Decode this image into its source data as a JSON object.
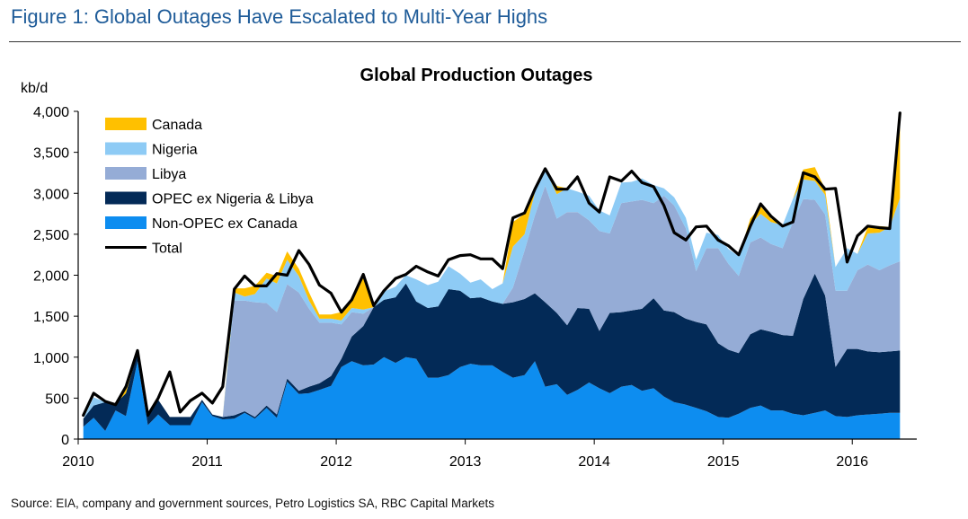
{
  "figure_title": "Figure 1: Global Outages Have Escalated to Multi-Year Highs",
  "source": "Source: EIA, company and government sources, Petro Logistics SA, RBC Capital Markets",
  "colors": {
    "Canada": "#ffc000",
    "Nigeria": "#8ecbf5",
    "Libya": "#95acd6",
    "OPEC ex Nigeria & Libya": "#032a57",
    "Non-OPEC ex Canada": "#0d8df0",
    "Total": "#000000"
  },
  "chart_data": {
    "type": "area",
    "stacked": true,
    "title": "Global Production Outages",
    "ylabel": "kb/d",
    "xlabel": "",
    "xlim": [
      2010.0,
      2016.5
    ],
    "ylim": [
      0,
      4000
    ],
    "yticks": [
      0,
      500,
      1000,
      1500,
      2000,
      2500,
      3000,
      3500,
      4000
    ],
    "ytick_labels": [
      "0",
      "500",
      "1,000",
      "1,500",
      "2,000",
      "2,500",
      "3,000",
      "3,500",
      "4,000"
    ],
    "xticks": [
      2010,
      2011,
      2012,
      2013,
      2014,
      2015,
      2016
    ],
    "xtick_labels": [
      "2010",
      "2011",
      "2012",
      "2013",
      "2014",
      "2015",
      "2016"
    ],
    "grid": false,
    "legend_position": "top-left",
    "x": [
      2010.04,
      2010.12,
      2010.21,
      2010.29,
      2010.37,
      2010.46,
      2010.54,
      2010.62,
      2010.71,
      2010.79,
      2010.87,
      2010.96,
      2011.04,
      2011.12,
      2011.21,
      2011.29,
      2011.37,
      2011.46,
      2011.54,
      2011.62,
      2011.71,
      2011.79,
      2011.87,
      2011.96,
      2012.04,
      2012.12,
      2012.21,
      2012.29,
      2012.37,
      2012.46,
      2012.54,
      2012.62,
      2012.71,
      2012.79,
      2012.87,
      2012.96,
      2013.04,
      2013.12,
      2013.21,
      2013.29,
      2013.37,
      2013.46,
      2013.54,
      2013.62,
      2013.71,
      2013.79,
      2013.87,
      2013.96,
      2014.04,
      2014.12,
      2014.21,
      2014.29,
      2014.37,
      2014.46,
      2014.54,
      2014.62,
      2014.71,
      2014.79,
      2014.87,
      2014.96,
      2015.04,
      2015.12,
      2015.21,
      2015.29,
      2015.37,
      2015.46,
      2015.54,
      2015.62,
      2015.71,
      2015.79,
      2015.87,
      2015.96,
      2016.04,
      2016.12,
      2016.21,
      2016.29,
      2016.37
    ],
    "series": [
      {
        "name": "Non-OPEC ex Canada",
        "values": [
          150,
          260,
          100,
          350,
          280,
          950,
          170,
          300,
          170,
          170,
          170,
          450,
          280,
          240,
          250,
          320,
          250,
          380,
          260,
          700,
          550,
          560,
          600,
          650,
          880,
          950,
          900,
          910,
          1000,
          930,
          1000,
          980,
          750,
          750,
          780,
          880,
          920,
          900,
          900,
          820,
          750,
          780,
          950,
          640,
          670,
          540,
          600,
          690,
          620,
          560,
          640,
          660,
          590,
          620,
          520,
          450,
          420,
          380,
          340,
          270,
          260,
          310,
          380,
          410,
          350,
          350,
          310,
          290,
          320,
          350,
          280,
          270,
          290,
          300,
          310,
          320,
          320
        ]
      },
      {
        "name": "OPEC ex Nigeria & Libya",
        "values": [
          100,
          150,
          350,
          80,
          280,
          100,
          100,
          180,
          100,
          100,
          100,
          30,
          20,
          30,
          40,
          20,
          20,
          30,
          40,
          40,
          40,
          80,
          80,
          120,
          100,
          300,
          480,
          700,
          700,
          800,
          900,
          700,
          850,
          870,
          1050,
          930,
          800,
          830,
          780,
          830,
          920,
          930,
          830,
          1030,
          870,
          850,
          1000,
          900,
          700,
          980,
          910,
          910,
          1000,
          1100,
          1050,
          1100,
          1050,
          1050,
          1060,
          900,
          830,
          740,
          900,
          930,
          960,
          920,
          950,
          1420,
          1700,
          1400,
          600,
          830,
          810,
          770,
          750,
          750,
          760
        ]
      },
      {
        "name": "Libya",
        "values": [
          0,
          0,
          0,
          0,
          0,
          0,
          0,
          0,
          0,
          0,
          0,
          0,
          0,
          0,
          1400,
          1350,
          1400,
          1250,
          1250,
          1150,
          1200,
          950,
          740,
          650,
          420,
          300,
          150,
          0,
          0,
          0,
          0,
          0,
          0,
          0,
          0,
          0,
          0,
          0,
          0,
          0,
          180,
          590,
          950,
          1420,
          1150,
          1380,
          1170,
          1080,
          1220,
          970,
          1330,
          1330,
          1330,
          1160,
          1400,
          1300,
          1100,
          620,
          930,
          1160,
          1050,
          940,
          1120,
          1120,
          1070,
          1060,
          1390,
          1220,
          900,
          990,
          930,
          710,
          960,
          1060,
          1000,
          1050,
          1090
        ]
      },
      {
        "name": "Nigeria",
        "values": [
          0,
          100,
          0,
          0,
          0,
          0,
          0,
          0,
          0,
          0,
          0,
          0,
          0,
          0,
          100,
          50,
          100,
          300,
          350,
          300,
          200,
          100,
          50,
          50,
          50,
          50,
          50,
          0,
          100,
          130,
          100,
          270,
          280,
          300,
          280,
          210,
          190,
          220,
          150,
          250,
          500,
          200,
          280,
          200,
          300,
          290,
          250,
          300,
          250,
          220,
          250,
          240,
          260,
          220,
          90,
          100,
          130,
          140,
          190,
          160,
          180,
          240,
          220,
          290,
          270,
          280,
          280,
          240,
          230,
          240,
          290,
          520,
          200,
          380,
          460,
          470,
          770
        ]
      },
      {
        "name": "Canada",
        "values": [
          0,
          0,
          0,
          0,
          50,
          0,
          0,
          0,
          0,
          0,
          0,
          0,
          0,
          0,
          50,
          100,
          100,
          70,
          90,
          100,
          90,
          100,
          50,
          50,
          100,
          100,
          400,
          50,
          0,
          0,
          0,
          0,
          0,
          0,
          0,
          0,
          0,
          0,
          0,
          0,
          300,
          250,
          0,
          0,
          100,
          0,
          0,
          0,
          0,
          0,
          0,
          0,
          0,
          0,
          0,
          0,
          0,
          0,
          0,
          0,
          0,
          0,
          70,
          90,
          40,
          0,
          0,
          120,
          170,
          70,
          0,
          0,
          0,
          80,
          80,
          0,
          1020
        ]
      }
    ],
    "total": {
      "name": "Total",
      "values": [
        290,
        560,
        460,
        420,
        640,
        1080,
        290,
        500,
        820,
        330,
        470,
        560,
        440,
        640,
        1830,
        1990,
        1870,
        1870,
        2020,
        2000,
        2300,
        2130,
        1880,
        1780,
        1550,
        1700,
        2010,
        1630,
        1810,
        1960,
        2010,
        2110,
        2040,
        1990,
        2190,
        2240,
        2250,
        2200,
        2200,
        2080,
        2700,
        2760,
        3050,
        3300,
        3050,
        3050,
        3200,
        2880,
        2770,
        3200,
        3150,
        3270,
        3130,
        3080,
        2850,
        2520,
        2430,
        2590,
        2600,
        2430,
        2360,
        2250,
        2600,
        2870,
        2720,
        2600,
        2650,
        3250,
        3200,
        3050,
        3060,
        2160,
        2480,
        2600,
        2580,
        2570,
        3980
      ]
    }
  }
}
